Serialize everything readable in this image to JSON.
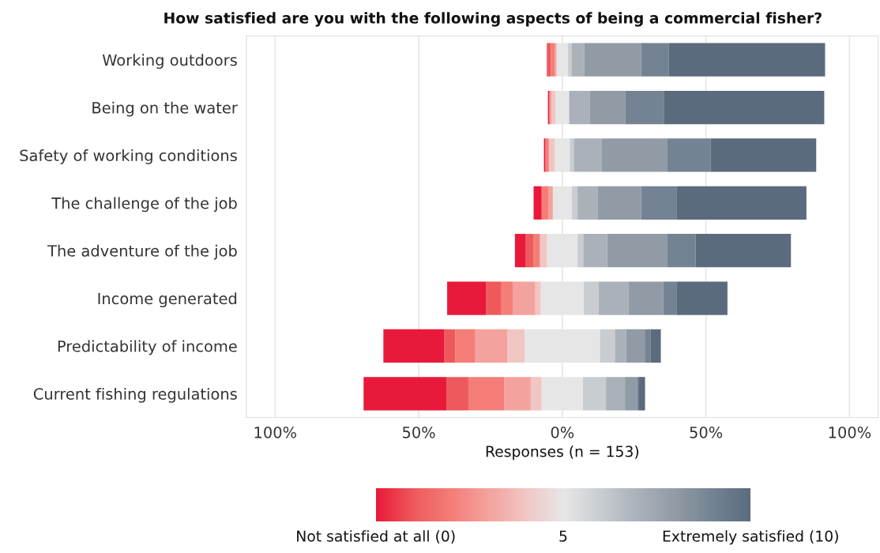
{
  "chart_data": {
    "type": "bar",
    "orientation": "horizontal",
    "stacked": true,
    "title": "How satisfied are you with the following aspects of being a commercial fisher?",
    "xlabel": "Responses (n = 153)",
    "categories": [
      "Working outdoors",
      "Being on the water",
      "Safety of working conditions",
      "The challenge of the job",
      "The adventure of the job",
      "Income generated",
      "Predictability of income",
      "Current fishing regulations"
    ],
    "series": [
      {
        "color": "#e6e6e6",
        "values": [
          -2,
          -2.4,
          -2.6,
          -3.3,
          -5.3,
          -7.5,
          -13.1,
          -7.2
        ]
      },
      {
        "color": "#f0c6c3",
        "values": [
          0,
          -1.4,
          -2.1,
          0,
          -2.5,
          -1.9,
          -6.0,
          -3.8
        ]
      },
      {
        "color": "#f4a29e",
        "values": [
          -0.6,
          -0.7,
          0,
          -1.6,
          0,
          -7.9,
          -11.2,
          -9.2
        ]
      },
      {
        "color": "#f47d78",
        "values": [
          -1.4,
          0,
          -1.2,
          -2.3,
          -2.3,
          -3.9,
          -7.0,
          -12.5
        ]
      },
      {
        "color": "#ee5a5c",
        "values": [
          -1.4,
          0,
          0,
          0,
          -2.6,
          -5.3,
          -3.9,
          -7.7
        ]
      },
      {
        "color": "#e8193a",
        "values": [
          0,
          -0.5,
          -0.5,
          -2.8,
          -3.8,
          -13.6,
          -21.1,
          -28.8
        ]
      },
      {
        "color": "#e6e6e6",
        "values": [
          2,
          2.4,
          2.6,
          3.3,
          5.3,
          7.5,
          13.1,
          7.2
        ]
      },
      {
        "color": "#c9cdd1",
        "values": [
          1.2,
          0,
          1.4,
          2.0,
          2.0,
          5.2,
          5.2,
          8.0
        ]
      },
      {
        "color": "#aab1b9",
        "values": [
          4.5,
          7.1,
          9.8,
          7.1,
          8.3,
          10.4,
          3.9,
          6.6
        ]
      },
      {
        "color": "#919ba5",
        "values": [
          19.7,
          12.4,
          22.8,
          15.0,
          21.0,
          12.1,
          6.5,
          4.2
        ]
      },
      {
        "color": "#738393",
        "values": [
          9.7,
          13.6,
          15.1,
          12.5,
          9.8,
          4.7,
          2.1,
          0.5
        ]
      },
      {
        "color": "#5a6b7d",
        "values": [
          54.4,
          55.7,
          36.7,
          45.1,
          33.2,
          17.6,
          3.5,
          2.3
        ]
      }
    ],
    "xlim": [
      -110,
      110
    ],
    "xticks": [
      {
        "value": -100,
        "label": "100%"
      },
      {
        "value": -50,
        "label": "50%"
      },
      {
        "value": 0,
        "label": "0%"
      },
      {
        "value": 50,
        "label": "50%"
      },
      {
        "value": 100,
        "label": "100%"
      }
    ],
    "grid": "x",
    "clim": [
      0,
      10
    ],
    "cticks": [
      {
        "value": 0,
        "label": "Not satisfied at all (0)"
      },
      {
        "value": 5,
        "label": "5"
      },
      {
        "value": 10,
        "label": "Extremely satisfied (10)"
      }
    ]
  }
}
